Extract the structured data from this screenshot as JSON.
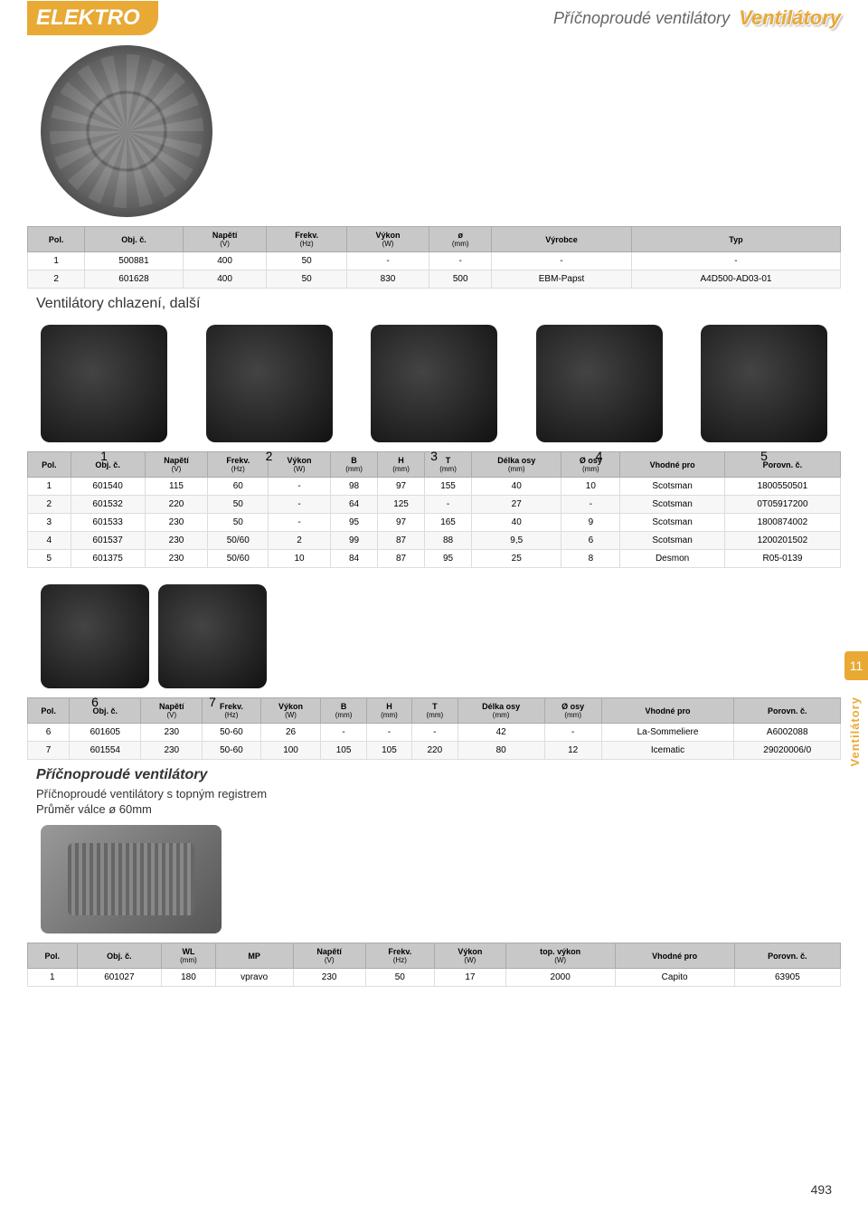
{
  "header": {
    "category": "ELEKTRO",
    "subtitle": "Příčnoproudé ventilátory",
    "title": "Ventilátory"
  },
  "section1": {
    "title": "Ventilátory chlazení, další"
  },
  "section2": {
    "title": "Příčnoproudé ventilátory",
    "sub1": "Příčnoproudé ventilátory s topným registrem",
    "sub2": "Průměr válce ø 60mm"
  },
  "sideTab": {
    "num": "11",
    "text": "Ventilátory"
  },
  "pageNum": "493",
  "table1": {
    "headers": [
      {
        "l1": "Pol."
      },
      {
        "l1": "Obj. č."
      },
      {
        "l1": "Napětí",
        "l2": "(V)"
      },
      {
        "l1": "Frekv.",
        "l2": "(Hz)"
      },
      {
        "l1": "Výkon",
        "l2": "(W)"
      },
      {
        "l1": "ø",
        "l2": "(mm)"
      },
      {
        "l1": "Výrobce"
      },
      {
        "l1": "Typ"
      }
    ],
    "rows": [
      [
        "1",
        "500881",
        "400",
        "50",
        "-",
        "-",
        "-",
        "-"
      ],
      [
        "2",
        "601628",
        "400",
        "50",
        "830",
        "500",
        "EBM-Papst",
        "A4D500-AD03-01"
      ]
    ]
  },
  "table2": {
    "headers": [
      {
        "l1": "Pol."
      },
      {
        "l1": "Obj. č."
      },
      {
        "l1": "Napětí",
        "l2": "(V)"
      },
      {
        "l1": "Frekv.",
        "l2": "(Hz)"
      },
      {
        "l1": "Výkon",
        "l2": "(W)"
      },
      {
        "l1": "B",
        "l2": "(mm)"
      },
      {
        "l1": "H",
        "l2": "(mm)"
      },
      {
        "l1": "T",
        "l2": "(mm)"
      },
      {
        "l1": "Délka osy",
        "l2": "(mm)"
      },
      {
        "l1": "Ø osy",
        "l2": "(mm)"
      },
      {
        "l1": "Vhodné pro"
      },
      {
        "l1": "Porovn. č."
      }
    ],
    "rows": [
      [
        "1",
        "601540",
        "115",
        "60",
        "-",
        "98",
        "97",
        "155",
        "40",
        "10",
        "Scotsman",
        "1800550501"
      ],
      [
        "2",
        "601532",
        "220",
        "50",
        "-",
        "64",
        "125",
        "-",
        "27",
        "-",
        "Scotsman",
        "0T05917200"
      ],
      [
        "3",
        "601533",
        "230",
        "50",
        "-",
        "95",
        "97",
        "165",
        "40",
        "9",
        "Scotsman",
        "1800874002"
      ],
      [
        "4",
        "601537",
        "230",
        "50/60",
        "2",
        "99",
        "87",
        "88",
        "9,5",
        "6",
        "Scotsman",
        "1200201502"
      ],
      [
        "5",
        "601375",
        "230",
        "50/60",
        "10",
        "84",
        "87",
        "95",
        "25",
        "8",
        "Desmon",
        "R05-0139"
      ]
    ]
  },
  "table3": {
    "headers": [
      {
        "l1": "Pol."
      },
      {
        "l1": "Obj. č."
      },
      {
        "l1": "Napětí",
        "l2": "(V)"
      },
      {
        "l1": "Frekv.",
        "l2": "(Hz)"
      },
      {
        "l1": "Výkon",
        "l2": "(W)"
      },
      {
        "l1": "B",
        "l2": "(mm)"
      },
      {
        "l1": "H",
        "l2": "(mm)"
      },
      {
        "l1": "T",
        "l2": "(mm)"
      },
      {
        "l1": "Délka osy",
        "l2": "(mm)"
      },
      {
        "l1": "Ø osy",
        "l2": "(mm)"
      },
      {
        "l1": "Vhodné pro"
      },
      {
        "l1": "Porovn. č."
      }
    ],
    "rows": [
      [
        "6",
        "601605",
        "230",
        "50-60",
        "26",
        "-",
        "-",
        "-",
        "42",
        "-",
        "La-Sommeliere",
        "A6002088"
      ],
      [
        "7",
        "601554",
        "230",
        "50-60",
        "100",
        "105",
        "105",
        "220",
        "80",
        "12",
        "Icematic",
        "29020006/0"
      ]
    ]
  },
  "table4": {
    "headers": [
      {
        "l1": "Pol."
      },
      {
        "l1": "Obj. č."
      },
      {
        "l1": "WL",
        "l2": "(mm)"
      },
      {
        "l1": "MP"
      },
      {
        "l1": "Napětí",
        "l2": "(V)"
      },
      {
        "l1": "Frekv.",
        "l2": "(Hz)"
      },
      {
        "l1": "Výkon",
        "l2": "(W)"
      },
      {
        "l1": "top. výkon",
        "l2": "(W)"
      },
      {
        "l1": "Vhodné pro"
      },
      {
        "l1": "Porovn. č."
      }
    ],
    "rows": [
      [
        "1",
        "601027",
        "180",
        "vpravo",
        "230",
        "50",
        "17",
        "2000",
        "Capito",
        "63905"
      ]
    ]
  },
  "motorLabels": [
    "1",
    "2",
    "3",
    "4",
    "5",
    "6",
    "7"
  ]
}
